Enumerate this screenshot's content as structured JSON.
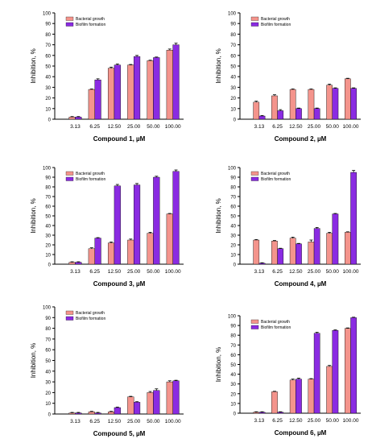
{
  "colors": {
    "bacterial_growth": "#f4948c",
    "biofilm_formation": "#8a2be2",
    "error_bar": "#000000",
    "axis": "#000000"
  },
  "chart_data": [
    {
      "type": "bar",
      "xlabel": "Compound 1, µM",
      "ylabel": "Inhibition, %",
      "ylim": [
        0,
        100
      ],
      "yticks": [
        0,
        10,
        20,
        30,
        40,
        50,
        60,
        70,
        80,
        90,
        100
      ],
      "categories": [
        "3.13",
        "6.25",
        "12.50",
        "25.00",
        "50.00",
        "100.00"
      ],
      "legend": "top-left",
      "series": [
        {
          "name": "Bacterial growth",
          "values": [
            2,
            28,
            48,
            51,
            55,
            65
          ],
          "errors": [
            0.5,
            0.5,
            1,
            0.5,
            0.5,
            1
          ]
        },
        {
          "name": "Biofilm formation",
          "values": [
            2,
            37,
            51,
            59,
            58,
            70
          ],
          "errors": [
            0.5,
            1,
            1,
            1,
            0.5,
            1.5
          ]
        }
      ]
    },
    {
      "type": "bar",
      "xlabel": "Compound 2, µM",
      "ylabel": "Inhibition, %",
      "ylim": [
        0,
        100
      ],
      "yticks": [
        0,
        10,
        20,
        30,
        40,
        50,
        60,
        70,
        80,
        90,
        100
      ],
      "categories": [
        "3.13",
        "6.25",
        "12.50",
        "25.00",
        "50.00",
        "100.00"
      ],
      "legend": "top-left",
      "series": [
        {
          "name": "Bacterial growth",
          "values": [
            16,
            22,
            28,
            28,
            32,
            38
          ],
          "errors": [
            1,
            1,
            0.5,
            0.5,
            1,
            0.5
          ]
        },
        {
          "name": "Biofilm formation",
          "values": [
            3,
            8,
            10,
            10,
            29,
            29
          ],
          "errors": [
            0.5,
            1,
            0.5,
            0.5,
            0.5,
            0.5
          ]
        }
      ]
    },
    {
      "type": "bar",
      "xlabel": "Compound 3, µM",
      "ylabel": "Inhibition, %",
      "ylim": [
        0,
        100
      ],
      "yticks": [
        0,
        10,
        20,
        30,
        40,
        50,
        60,
        70,
        80,
        90,
        100
      ],
      "categories": [
        "3.13",
        "6.25",
        "12.50",
        "25.00",
        "50.00",
        "100.00"
      ],
      "legend": "top-left",
      "series": [
        {
          "name": "Bacterial growth",
          "values": [
            2,
            16,
            22,
            25,
            32,
            52
          ],
          "errors": [
            0.5,
            1,
            1,
            1,
            1,
            0.5
          ]
        },
        {
          "name": "Biofilm formation",
          "values": [
            2,
            27,
            81,
            82,
            90,
            96
          ],
          "errors": [
            0.5,
            0.5,
            1.5,
            1.5,
            1,
            1.5
          ]
        }
      ]
    },
    {
      "type": "bar",
      "xlabel": "Compound 4, µM",
      "ylabel": "Inhibition, %",
      "ylim": [
        0,
        100
      ],
      "yticks": [
        0,
        10,
        20,
        30,
        40,
        50,
        60,
        70,
        80,
        90,
        100
      ],
      "categories": [
        "3.13",
        "6.25",
        "12.50",
        "25.00",
        "50.00",
        "100.00"
      ],
      "legend": "top-left",
      "series": [
        {
          "name": "Bacterial growth",
          "values": [
            25,
            24,
            27,
            23,
            32,
            33
          ],
          "errors": [
            0.5,
            0.5,
            1,
            2,
            1,
            0.5
          ]
        },
        {
          "name": "Biofilm formation",
          "values": [
            1,
            16,
            21,
            37,
            52,
            95
          ],
          "errors": [
            0.5,
            0.5,
            0.5,
            1,
            0.5,
            2
          ]
        }
      ]
    },
    {
      "type": "bar",
      "xlabel": "Compound 5, µM",
      "ylabel": "Inhibition, %",
      "ylim": [
        0,
        100
      ],
      "yticks": [
        0,
        10,
        20,
        30,
        40,
        50,
        60,
        70,
        80,
        90,
        100
      ],
      "categories": [
        "3.13",
        "6.25",
        "12.50",
        "25.00",
        "50.00",
        "100.00"
      ],
      "legend": "top-left",
      "series": [
        {
          "name": "Bacterial growth",
          "values": [
            1,
            2,
            2,
            16,
            20,
            30
          ],
          "errors": [
            0.5,
            0.5,
            0.5,
            0.5,
            1,
            1
          ]
        },
        {
          "name": "Biofilm formation",
          "values": [
            1,
            1,
            6,
            11,
            22,
            31
          ],
          "errors": [
            0.5,
            0.5,
            0.5,
            0.5,
            1.5,
            0.5
          ]
        }
      ]
    },
    {
      "type": "bar",
      "xlabel": "Compound 6, µM",
      "ylabel": "Inhibition, %",
      "ylim": [
        0,
        100
      ],
      "yticks": [
        0,
        10,
        20,
        30,
        40,
        50,
        60,
        70,
        80,
        90,
        100
      ],
      "categories": [
        "3.13",
        "6.25",
        "12.50",
        "25.00",
        "50.00",
        "100.00"
      ],
      "legend": "top-left",
      "series": [
        {
          "name": "Bacterial growth",
          "values": [
            1,
            22,
            34,
            35,
            48,
            87
          ],
          "errors": [
            0.5,
            0.5,
            1,
            0.5,
            1,
            0.5
          ]
        },
        {
          "name": "Biofilm formation",
          "values": [
            1,
            1,
            35,
            82,
            85,
            98
          ],
          "errors": [
            0.5,
            0.5,
            1,
            1,
            0.5,
            0.5
          ]
        }
      ]
    }
  ]
}
